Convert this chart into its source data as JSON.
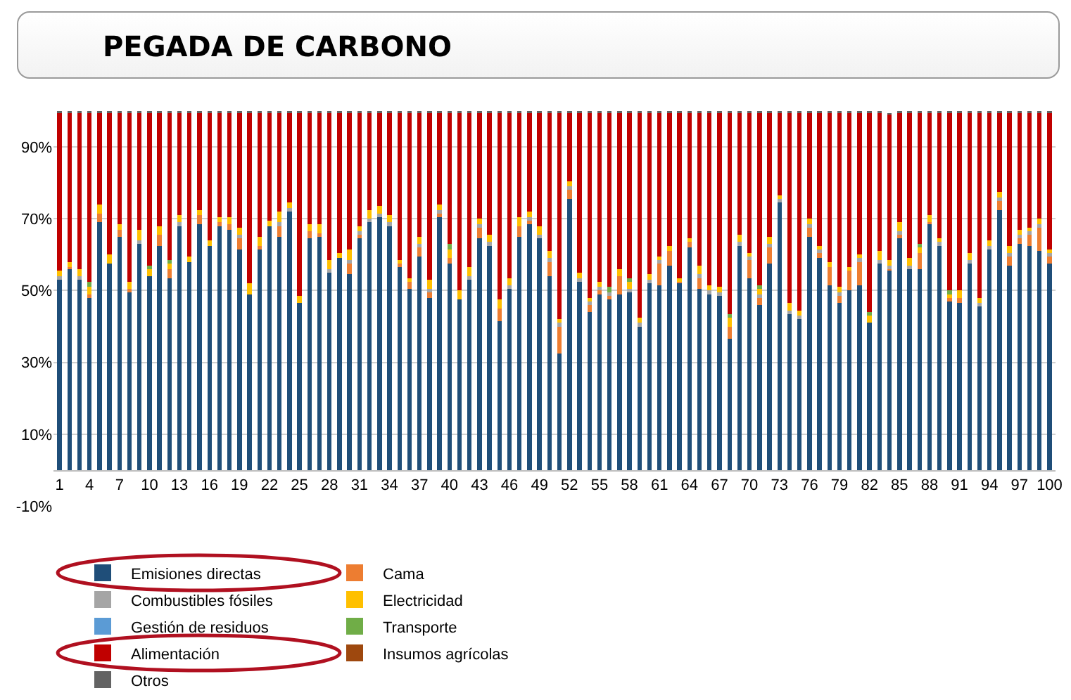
{
  "chart_data": {
    "type": "bar",
    "title": "PEGADA DE CARBONO",
    "stacked": true,
    "grid": "y",
    "legend": "bottom",
    "categories": [
      "1",
      null,
      null,
      "4",
      null,
      null,
      "7",
      null,
      null,
      "10",
      null,
      null,
      "13",
      null,
      null,
      "16",
      null,
      null,
      "19",
      null,
      null,
      "22",
      null,
      null,
      "25",
      null,
      null,
      "28",
      null,
      null,
      "31",
      null,
      null,
      "34",
      null,
      null,
      "37",
      null,
      null,
      "40",
      null,
      null,
      "43",
      null,
      null,
      "46",
      null,
      null,
      "49",
      null,
      null,
      "52",
      null,
      null,
      "55",
      null,
      null,
      "58",
      null,
      null,
      "61",
      null,
      null,
      "64",
      null,
      null,
      "67",
      null,
      null,
      "70",
      null,
      null,
      "73",
      null,
      null,
      "76",
      null,
      null,
      "79",
      null,
      null,
      "82",
      null,
      null,
      "85",
      null,
      null,
      "88",
      null,
      null,
      "91",
      null,
      null,
      "94",
      null,
      null,
      "97",
      null,
      null,
      "100"
    ],
    "ylim": [
      -10,
      100
    ],
    "yticks": [
      {
        "value": -10,
        "label": "-10%"
      },
      {
        "value": 10,
        "label": "10%"
      },
      {
        "value": 30,
        "label": "30%"
      },
      {
        "value": 50,
        "label": "50%"
      },
      {
        "value": 70,
        "label": "70%"
      },
      {
        "value": 90,
        "label": "90%"
      }
    ],
    "series": [
      {
        "name": "Emisiones directas",
        "color": "#1f4e79",
        "values": [
          53,
          56,
          53,
          48,
          69,
          57.5,
          65,
          49.5,
          63,
          54,
          62.5,
          53.5,
          68,
          58,
          68.5,
          62.5,
          68,
          67,
          61.5,
          49,
          61.5,
          68,
          65,
          72,
          46.5,
          64.5,
          65,
          55,
          59,
          54.5,
          64.5,
          69,
          70.5,
          68,
          56.5,
          50.5,
          59.5,
          48,
          70.5,
          57.5,
          47.5,
          53,
          64.5,
          62.5,
          41.5,
          50.5,
          65,
          68.5,
          64.5,
          54,
          32.5,
          75.5,
          52.5,
          44,
          49,
          47.5,
          49,
          49.5,
          40,
          52,
          51.5,
          57,
          52,
          62,
          50.5,
          49,
          48.5,
          36.5,
          62.5,
          53.5,
          46,
          57.5,
          74.5,
          43.5,
          42,
          65,
          59,
          51.5,
          46.5,
          50,
          51.5,
          41,
          57.5,
          55.5,
          64.5,
          56,
          56,
          68.5,
          62.5,
          47,
          46.5,
          57.5,
          45.5,
          61.5,
          72.5,
          57,
          63,
          62.5,
          61,
          57.5
        ]
      },
      {
        "name": "Cama",
        "color": "#ed7d31",
        "values": [
          0,
          0.5,
          0,
          1,
          2.5,
          0,
          2,
          1,
          0,
          0,
          3,
          2.5,
          0,
          0,
          2.5,
          0,
          1,
          1.5,
          3,
          0,
          1,
          0,
          3,
          0,
          0,
          2,
          1,
          0,
          0,
          3,
          1,
          0,
          0,
          0,
          1,
          2,
          2.5,
          1.5,
          1,
          1.5,
          0,
          0,
          3,
          0,
          3.5,
          0,
          3,
          1,
          0,
          4,
          7.5,
          2.5,
          0,
          2,
          1,
          1,
          5,
          0,
          0,
          0,
          6,
          4,
          0.5,
          1.5,
          3,
          0,
          0,
          3.5,
          0,
          5,
          2,
          4.5,
          0,
          0,
          0,
          2.5,
          1.5,
          5,
          2,
          5.5,
          6.5,
          0,
          0,
          0.5,
          1,
          0,
          4.5,
          0.5,
          0,
          1,
          1.5,
          0,
          0,
          0,
          2.5,
          2.5,
          1.5,
          3,
          6.5,
          2
        ]
      },
      {
        "name": "Combustibles fósiles",
        "color": "#a5a5a5",
        "values": [
          1,
          0,
          1,
          0,
          0,
          0,
          0,
          0,
          1,
          0,
          0,
          0,
          1,
          0,
          0,
          0,
          0,
          0,
          1,
          0,
          0,
          0,
          1,
          1,
          0,
          0,
          0,
          1,
          0,
          1,
          1,
          1,
          1,
          1,
          0,
          0,
          1,
          1,
          1,
          0,
          0,
          1,
          1,
          1,
          0,
          1,
          0,
          1,
          1,
          1,
          1,
          1,
          1,
          1,
          1,
          1,
          0,
          1,
          1,
          1,
          1,
          0,
          0,
          0,
          1,
          1,
          1,
          0,
          1,
          1,
          1,
          1,
          1,
          1,
          1,
          1,
          1,
          0,
          1,
          0,
          1,
          0,
          1,
          1,
          1,
          1,
          0,
          0,
          1,
          0,
          0,
          1,
          1,
          1,
          1,
          1,
          1,
          1,
          1,
          1
        ]
      },
      {
        "name": "Electricidad",
        "color": "#ffc000",
        "values": [
          1.5,
          1.5,
          2,
          2,
          2.5,
          2.5,
          1.5,
          2,
          3,
          2,
          2.5,
          1.5,
          2,
          1.5,
          1.5,
          1.5,
          1.5,
          2,
          2,
          3,
          2.5,
          1.5,
          3,
          1.5,
          2,
          2,
          2.5,
          2.5,
          1.5,
          3,
          1.5,
          2.5,
          2,
          2,
          1,
          1,
          2,
          2.5,
          1.5,
          2.5,
          2.5,
          2.5,
          1.5,
          2,
          2.5,
          2,
          2.5,
          1.5,
          2.5,
          2,
          1,
          1.5,
          1.5,
          1,
          1.5,
          0,
          2,
          2,
          1.5,
          1.5,
          1,
          1.5,
          1,
          1,
          2.5,
          1.5,
          1.5,
          2.5,
          2,
          1,
          1.5,
          2,
          1,
          2,
          1.5,
          1.5,
          1,
          1.5,
          1.5,
          1,
          1,
          2,
          2.5,
          1.5,
          2.5,
          2,
          1.5,
          2,
          1,
          1,
          2,
          2,
          1.5,
          1.5,
          1.5,
          2,
          1.5,
          1,
          1.5,
          1
        ]
      },
      {
        "name": "Gestión de residuos",
        "color": "#5b9bd5",
        "values": [
          0,
          0,
          0,
          0,
          0,
          0,
          0,
          0,
          0,
          0,
          0,
          0,
          0,
          0,
          0,
          0,
          0,
          0,
          0,
          0,
          0,
          0,
          0,
          0,
          0,
          0,
          0,
          0,
          0,
          0,
          0,
          0,
          0,
          0,
          0,
          0,
          0,
          0,
          0,
          0,
          0,
          0,
          0,
          0,
          0,
          0,
          0,
          0,
          0,
          0,
          0,
          0,
          0,
          0,
          0,
          0,
          0,
          0,
          0,
          0,
          0,
          0,
          0,
          0,
          0,
          0,
          0,
          0,
          0,
          0,
          0,
          0,
          0,
          0,
          0,
          0,
          0,
          0,
          0,
          0,
          0,
          0,
          0,
          0,
          0,
          0,
          0,
          0,
          0,
          0,
          0,
          0,
          0,
          0,
          0,
          0,
          0,
          0,
          0,
          0
        ]
      },
      {
        "name": "Transporte",
        "color": "#70ad47",
        "values": [
          0,
          0,
          0,
          1.5,
          0,
          0,
          0,
          0,
          0,
          1,
          0,
          1,
          0,
          0,
          0,
          0,
          0,
          0,
          0,
          0,
          0,
          0,
          0,
          0,
          0,
          0,
          0,
          0,
          0,
          0,
          0,
          0,
          0,
          0,
          0,
          0,
          0,
          0,
          0,
          1.5,
          0,
          0,
          0,
          0,
          0,
          0,
          0,
          0,
          0,
          0,
          0,
          0,
          0,
          0,
          0,
          1.5,
          0,
          1,
          0,
          0,
          0,
          0,
          0,
          0,
          0,
          0,
          0,
          1,
          0,
          0,
          1,
          0,
          0,
          0,
          0,
          0,
          0,
          0,
          0,
          0,
          0,
          1,
          0,
          0,
          0,
          0,
          1,
          0,
          0,
          1,
          0,
          0,
          0,
          0,
          0,
          0,
          0,
          0,
          0,
          0
        ]
      },
      {
        "name": "Alimentación",
        "color": "#c00000",
        "values": [
          44,
          41.5,
          43.5,
          47,
          25.5,
          39.5,
          31,
          47,
          32.5,
          42.5,
          31.5,
          41,
          28.5,
          40,
          27,
          35.5,
          29,
          29,
          32,
          47.5,
          34.5,
          30,
          27.5,
          25,
          51,
          31,
          31,
          41,
          39,
          38,
          31.5,
          27,
          26,
          28.5,
          41,
          46,
          34.5,
          46.5,
          25.5,
          36.5,
          49.5,
          43,
          29.5,
          34,
          52,
          46,
          29,
          27.5,
          31.5,
          38.5,
          57.5,
          19,
          44.5,
          51.5,
          47,
          48.5,
          43.5,
          46,
          57,
          45,
          40,
          37,
          46,
          35,
          42.5,
          48,
          48.5,
          56,
          34,
          39,
          48,
          34.5,
          23,
          53,
          55,
          29.5,
          37,
          41.5,
          48.5,
          43,
          39.5,
          55.5,
          38.5,
          40.5,
          30.5,
          40.5,
          36.5,
          28.5,
          35,
          49.5,
          49.5,
          39,
          51.5,
          35.5,
          22,
          37,
          32.5,
          32,
          29.5,
          38
        ]
      },
      {
        "name": "Insumos agrícolas",
        "color": "#9e480e",
        "values": [
          0,
          0,
          0,
          0,
          0,
          0,
          0,
          0,
          0,
          0,
          0,
          0,
          0,
          0,
          0,
          0,
          0,
          0,
          0,
          0,
          0,
          0,
          0,
          0,
          0,
          0,
          0,
          0,
          0,
          0,
          0,
          0,
          0,
          0,
          0,
          0,
          0,
          0,
          0,
          0,
          0,
          0,
          0,
          0,
          0,
          0,
          0,
          0,
          0,
          0,
          0,
          0,
          0,
          0,
          0,
          0,
          0,
          0,
          0,
          0,
          0,
          0,
          0,
          0,
          0,
          0,
          0,
          0,
          0,
          0,
          0,
          0,
          0,
          0,
          0,
          0,
          0,
          0,
          0,
          0,
          0,
          0,
          0,
          0,
          0,
          0,
          0,
          0,
          0,
          0,
          0,
          0,
          0,
          0,
          0,
          0,
          0,
          0,
          0,
          0
        ]
      },
      {
        "name": "Otros",
        "color": "#636363",
        "values": [
          0.5,
          0.5,
          0.5,
          0.5,
          0.5,
          0.5,
          0.5,
          0.5,
          0.5,
          0.5,
          0.5,
          0.5,
          0.5,
          0.5,
          0.5,
          0.5,
          0.5,
          0.5,
          0.5,
          0.5,
          0.5,
          0.5,
          0.5,
          0.5,
          0.5,
          0.5,
          0.5,
          0.5,
          0.5,
          0.5,
          0.5,
          0.5,
          0.5,
          0.5,
          0.5,
          0.5,
          0.5,
          0.5,
          0.5,
          0.5,
          0.5,
          0.5,
          0.5,
          0.5,
          0.5,
          0.5,
          0.5,
          0.5,
          0.5,
          0.5,
          0.5,
          0.5,
          0.5,
          0.5,
          0.5,
          0.5,
          0.5,
          0.5,
          0.5,
          0.5,
          0.5,
          0.5,
          0.5,
          0.5,
          0.5,
          0.5,
          0.5,
          0.5,
          0.5,
          0.5,
          0.5,
          0.5,
          0.5,
          0.5,
          0.5,
          0.5,
          0.5,
          0.5,
          0.5,
          0.5,
          0.5,
          0.5,
          0.5,
          0.5,
          0.5,
          0.5,
          0.5,
          0.5,
          0.5,
          0.5,
          0.5,
          0.5,
          0.5,
          0.5,
          0.5,
          0.5,
          0.5,
          0.5,
          0.5,
          0.5
        ]
      }
    ]
  }
}
